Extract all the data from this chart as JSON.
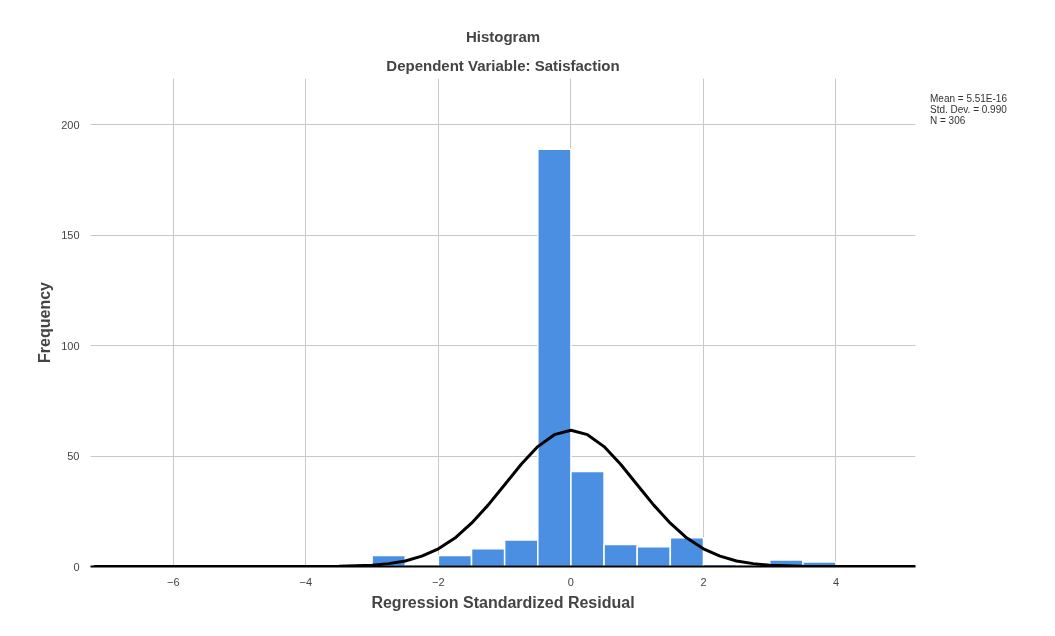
{
  "chart_data": {
    "type": "histogram",
    "title": "Histogram",
    "subtitle": "Dependent Variable: Satisfaction",
    "xlabel": "Regression Standardized Residual",
    "ylabel": "Frequency",
    "bins": [
      -3,
      -2.5,
      -2,
      -1.5,
      -1,
      -0.5,
      0,
      0.5,
      1,
      1.5,
      2,
      2.5,
      3,
      3.5,
      4
    ],
    "series": [
      {
        "color": "#4b8fe2",
        "values": [
          5,
          0,
          5,
          8,
          12,
          189,
          43,
          10,
          9,
          13,
          1,
          0,
          3,
          2
        ]
      },
      {
        "type": "line",
        "color": "#000000",
        "x": [
          -7.2,
          -6,
          -5,
          -4,
          -3.5,
          -3,
          -2.75,
          -2.5,
          -2.25,
          -2,
          -1.75,
          -1.5,
          -1.25,
          -1,
          -0.75,
          -0.5,
          -0.25,
          0,
          0.25,
          0.5,
          0.75,
          1,
          1.25,
          1.5,
          1.75,
          2,
          2.25,
          2.5,
          2.75,
          3,
          3.5,
          4,
          5,
          5.2
        ],
        "values": [
          0,
          0,
          0,
          0,
          0.1,
          0.6,
          1.3,
          2.5,
          4.7,
          8.0,
          12.9,
          19.6,
          27.8,
          37.0,
          46.3,
          54.3,
          59.7,
          61.7,
          59.7,
          54.3,
          46.3,
          37.0,
          27.8,
          19.6,
          12.9,
          8.0,
          4.7,
          2.5,
          1.3,
          0.6,
          0.1,
          0,
          0,
          0
        ]
      }
    ],
    "xlim": [
      -7.25,
      5.2
    ],
    "ylim": [
      0,
      221
    ],
    "xticks": [
      -6,
      -4,
      -2,
      0,
      2,
      4
    ],
    "yticks": [
      0,
      50,
      100,
      150,
      200
    ],
    "grid": true,
    "annotations": [
      "Mean = 5.51E-16",
      "Std. Dev. = 0.990",
      "N = 306"
    ]
  }
}
